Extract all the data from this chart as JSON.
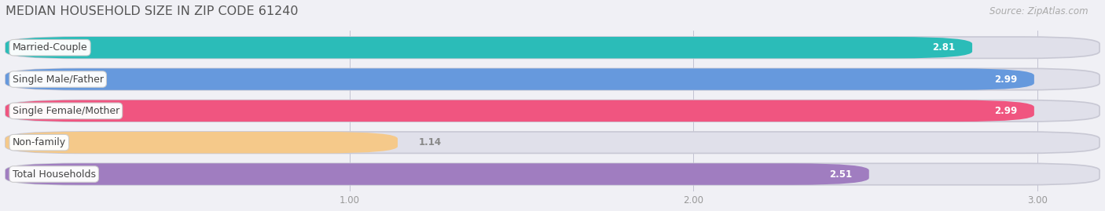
{
  "title": "MEDIAN HOUSEHOLD SIZE IN ZIP CODE 61240",
  "source": "Source: ZipAtlas.com",
  "categories": [
    "Married-Couple",
    "Single Male/Father",
    "Single Female/Mother",
    "Non-family",
    "Total Households"
  ],
  "values": [
    2.81,
    2.99,
    2.99,
    1.14,
    2.51
  ],
  "bar_colors": [
    "#2bbcb8",
    "#6699dd",
    "#f05580",
    "#f5c98a",
    "#a07dc0"
  ],
  "background_color": "#f0f0f5",
  "bar_bg_color": "#e0e0ea",
  "xlim": [
    0,
    3.18
  ],
  "xticks": [
    1.0,
    2.0,
    3.0
  ],
  "bar_height": 0.68,
  "bar_gap": 0.32,
  "figsize": [
    14.06,
    2.69
  ],
  "dpi": 100,
  "title_fontsize": 11.5,
  "source_fontsize": 8.5,
  "label_fontsize": 9,
  "value_fontsize": 8.5,
  "tick_fontsize": 8.5,
  "rounding_size": 0.22
}
